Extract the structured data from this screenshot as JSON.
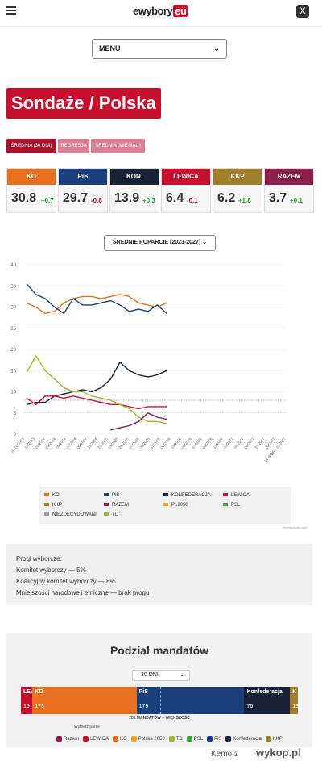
{
  "header": {
    "logo_main": "ewybory",
    "logo_accent": "eu",
    "x_label": "X"
  },
  "menu": {
    "label": "MENU",
    "chevron": "⌄"
  },
  "page_title": "Sondaże / Polska",
  "tabs": [
    {
      "label": "ŚREDNIA (30 DNI)",
      "color": "#a3142e"
    },
    {
      "label": "REGRESJA",
      "color": "#d98095"
    },
    {
      "label": "ŚREDNIA (MIESIĄC)",
      "color": "#d98095"
    }
  ],
  "cards": [
    {
      "name": "KO",
      "value": "30.8",
      "change": "+0.7",
      "color": "#e8711f"
    },
    {
      "name": "PiS",
      "value": "29.7",
      "change": "-0.8",
      "color": "#1a3f7a"
    },
    {
      "name": "KON.",
      "value": "13.9",
      "change": "+0.3",
      "color": "#172238"
    },
    {
      "name": "LEWICA",
      "value": "6.4",
      "change": "-0.1",
      "color": "#c8102e"
    },
    {
      "name": "KKP",
      "value": "6.2",
      "change": "+1.8",
      "color": "#a07f2c"
    },
    {
      "name": "RAZEM",
      "value": "3.7",
      "change": "+0.1",
      "color": "#8c1d4b"
    }
  ],
  "avg_select": {
    "label": "ŚREDNIE POPARCIE (2023-2027)",
    "chevron": "⌄"
  },
  "chart_data": {
    "type": "line",
    "ylim": [
      0,
      40
    ],
    "yticks": [
      "40",
      "35",
      "30",
      "25",
      "20",
      "15",
      "10",
      "5",
      "0"
    ],
    "xticks": [
      "10/10/2023",
      "11/2023",
      "01/2024",
      "03/2024",
      "05/2024",
      "07/2024",
      "09/2024",
      "11/2024",
      "01/2025",
      "03/2025",
      "05/2025",
      "07/2025",
      "09/2025",
      "11/2025",
      "01/2026",
      "03/2026",
      "05/2026",
      "07/2026",
      "09/2026",
      "11/2026",
      "01/2027",
      "03/2027",
      "05/2027",
      "07/2027",
      "09/2027",
      "WYBORY 10/2027"
    ],
    "reference_lines": [
      {
        "value": 8,
        "color": "#4b4bdd"
      },
      {
        "value": 5,
        "color": "#aaaaaa"
      }
    ],
    "series": [
      {
        "name": "KO",
        "color": "#e8711f",
        "values": [
          31,
          30,
          28.5,
          29,
          31,
          32,
          32.5,
          32.5,
          32,
          32.5,
          33,
          32.5,
          31,
          30.5,
          30,
          31
        ]
      },
      {
        "name": "PiS",
        "color": "#1a3f7a",
        "values": [
          35.5,
          33,
          32,
          30,
          28.5,
          32,
          30.5,
          30.5,
          31,
          31.5,
          30.5,
          29,
          29.5,
          29,
          30.5,
          28.5
        ]
      },
      {
        "name": "KONFEDERACJA",
        "color": "#172238",
        "values": [
          7,
          7.5,
          7.5,
          9,
          9.5,
          10,
          10.5,
          10,
          11,
          13,
          17,
          15,
          14,
          13.5,
          14,
          15
        ]
      },
      {
        "name": "LEWICA",
        "color": "#c8102e",
        "values": [
          8.5,
          7,
          9,
          9,
          8.5,
          9,
          8.5,
          8,
          7.5,
          7,
          7,
          6.5,
          6,
          6.5,
          6.5,
          6.5
        ]
      },
      {
        "name": "TD",
        "color": "#9cb82c",
        "values": [
          14.5,
          18.5,
          15,
          13,
          11,
          10,
          10,
          9,
          8.5,
          8,
          7,
          6,
          4,
          3,
          3,
          2.5
        ]
      },
      {
        "name": "RAZEM",
        "color": "#8c1d4b",
        "values": [
          null,
          null,
          null,
          null,
          null,
          null,
          null,
          null,
          null,
          1,
          1.5,
          2,
          3,
          5,
          4,
          3.5
        ]
      }
    ],
    "legend": [
      "KO",
      "PiS",
      "KONFEDERACJA",
      "LEWICA",
      "KKP",
      "RAZEM",
      "PL2050",
      "PSL",
      "NIEZDECYDOWANI",
      "TD"
    ],
    "legend_colors": [
      "#e8711f",
      "#1a3f7a",
      "#172238",
      "#c8102e",
      "#a07f2c",
      "#8c1d4b",
      "#f0a81a",
      "#3ca33c",
      "#999999",
      "#9cb82c"
    ]
  },
  "credit": "nightgraphs.com",
  "thresholds": {
    "title": "Progi wyborcze:",
    "line1": "Komitet wyborczy — 5%",
    "line2": "Koalicyjny komitet wyborczy — 8%",
    "line3": "Mniejszości narodowe i etniczne — brak progu"
  },
  "mandates": {
    "title": "Podział mandatów",
    "select": "30 DNI",
    "chevron": "⌄",
    "segments": [
      {
        "name": "LEW",
        "seats": "19",
        "color": "#c8102e"
      },
      {
        "name": "KO",
        "seats": "173",
        "color": "#e8711f"
      },
      {
        "name": "PiS",
        "seats": "179",
        "color": "#1a3f7a"
      },
      {
        "name": "Konfederacja",
        "seats": "76",
        "color": "#172238"
      },
      {
        "name": "K",
        "seats": "13",
        "color": "#a07f2c"
      }
    ],
    "majority_label": "231 MANDATÓW = WIĘKSZOŚĆ",
    "pick_label": "Wybierz partie",
    "parties": [
      {
        "name": "Razem",
        "color": "#8c1d4b"
      },
      {
        "name": "LEWICA",
        "color": "#c8102e"
      },
      {
        "name": "KO",
        "color": "#e8711f"
      },
      {
        "name": "Polska 2050",
        "color": "#f0a81a"
      },
      {
        "name": "TD",
        "color": "#9cb82c"
      },
      {
        "name": "PSL",
        "color": "#3ca33c"
      },
      {
        "name": "PiS",
        "color": "#1a3f7a"
      },
      {
        "name": "Konfederacja",
        "color": "#172238"
      },
      {
        "name": "KKP",
        "color": "#a07f2c"
      }
    ]
  },
  "footer": {
    "user": "Kemo z",
    "site": "wykop.pl"
  }
}
